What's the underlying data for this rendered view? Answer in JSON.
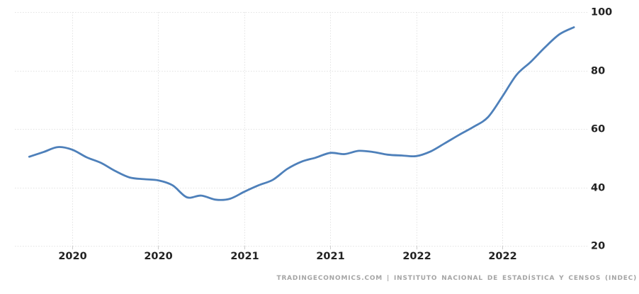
{
  "chart_data": {
    "type": "line",
    "title": "",
    "source_attribution": "TRADINGECONOMICS.COM | INSTITUTO NACIONAL DE ESTADÍSTICA Y CENSOS (INDEC)",
    "ylim": [
      20,
      100
    ],
    "y_ticks": [
      100,
      80,
      60,
      40,
      20
    ],
    "x_ticks": [
      {
        "label": "2020",
        "month_index": 3
      },
      {
        "label": "2020",
        "month_index": 9
      },
      {
        "label": "2021",
        "month_index": 15
      },
      {
        "label": "2021",
        "month_index": 21
      },
      {
        "label": "2022",
        "month_index": 27
      },
      {
        "label": "2022",
        "month_index": 33
      }
    ],
    "x_start": "2019-10",
    "x_end": "2022-12",
    "x_step": "1 month",
    "grid": "dotted",
    "legend": "none",
    "line_color": "#4e80ba",
    "series": [
      {
        "color": "#4e80ba",
        "start_month_index": 0,
        "values": [
          50.5,
          52.1,
          53.8,
          52.9,
          50.3,
          48.4,
          45.6,
          43.4,
          42.8,
          42.4,
          40.7,
          36.6,
          37.2,
          35.8,
          36.1,
          38.5,
          40.7,
          42.6,
          46.3,
          48.8,
          50.2,
          51.8,
          51.4,
          52.5,
          52.1,
          51.2,
          50.9,
          50.7,
          52.3,
          55.1,
          58.0,
          60.7,
          64.0,
          71.0,
          78.5,
          83.0,
          88.0,
          92.4,
          94.8
        ]
      }
    ]
  }
}
